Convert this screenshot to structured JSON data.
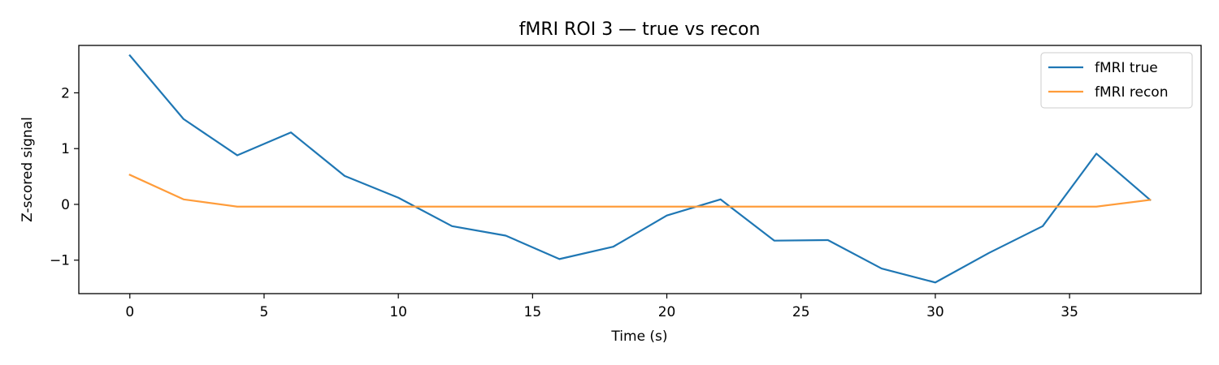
{
  "chart_data": {
    "type": "line",
    "title": "fMRI ROI 3 — true vs recon",
    "xlabel": "Time (s)",
    "ylabel": "Z-scored signal",
    "xlim": [
      -1.9,
      39.9
    ],
    "ylim": [
      -1.6,
      2.85
    ],
    "xticks": [
      0,
      5,
      10,
      15,
      20,
      25,
      30,
      35
    ],
    "yticks": [
      -1,
      0,
      1,
      2
    ],
    "grid": false,
    "legend_position": "top-right",
    "x": [
      0,
      2,
      4,
      6,
      8,
      10,
      12,
      14,
      16,
      18,
      20,
      22,
      24,
      26,
      28,
      30,
      32,
      34,
      36,
      38
    ],
    "series": [
      {
        "name": "fMRI true",
        "color": "#1f77b4",
        "values": [
          2.67,
          1.53,
          0.88,
          1.29,
          0.51,
          0.12,
          -0.39,
          -0.56,
          -0.98,
          -0.76,
          -0.2,
          0.09,
          -0.65,
          -0.64,
          -1.15,
          -1.4,
          -0.87,
          -0.39,
          0.91,
          0.08
        ]
      },
      {
        "name": "fMRI recon",
        "color": "#ff9c3a",
        "values": [
          0.53,
          0.09,
          -0.04,
          -0.04,
          -0.04,
          -0.04,
          -0.04,
          -0.04,
          -0.04,
          -0.04,
          -0.04,
          -0.04,
          -0.04,
          -0.04,
          -0.04,
          -0.04,
          -0.04,
          -0.04,
          -0.04,
          0.08
        ]
      }
    ]
  }
}
